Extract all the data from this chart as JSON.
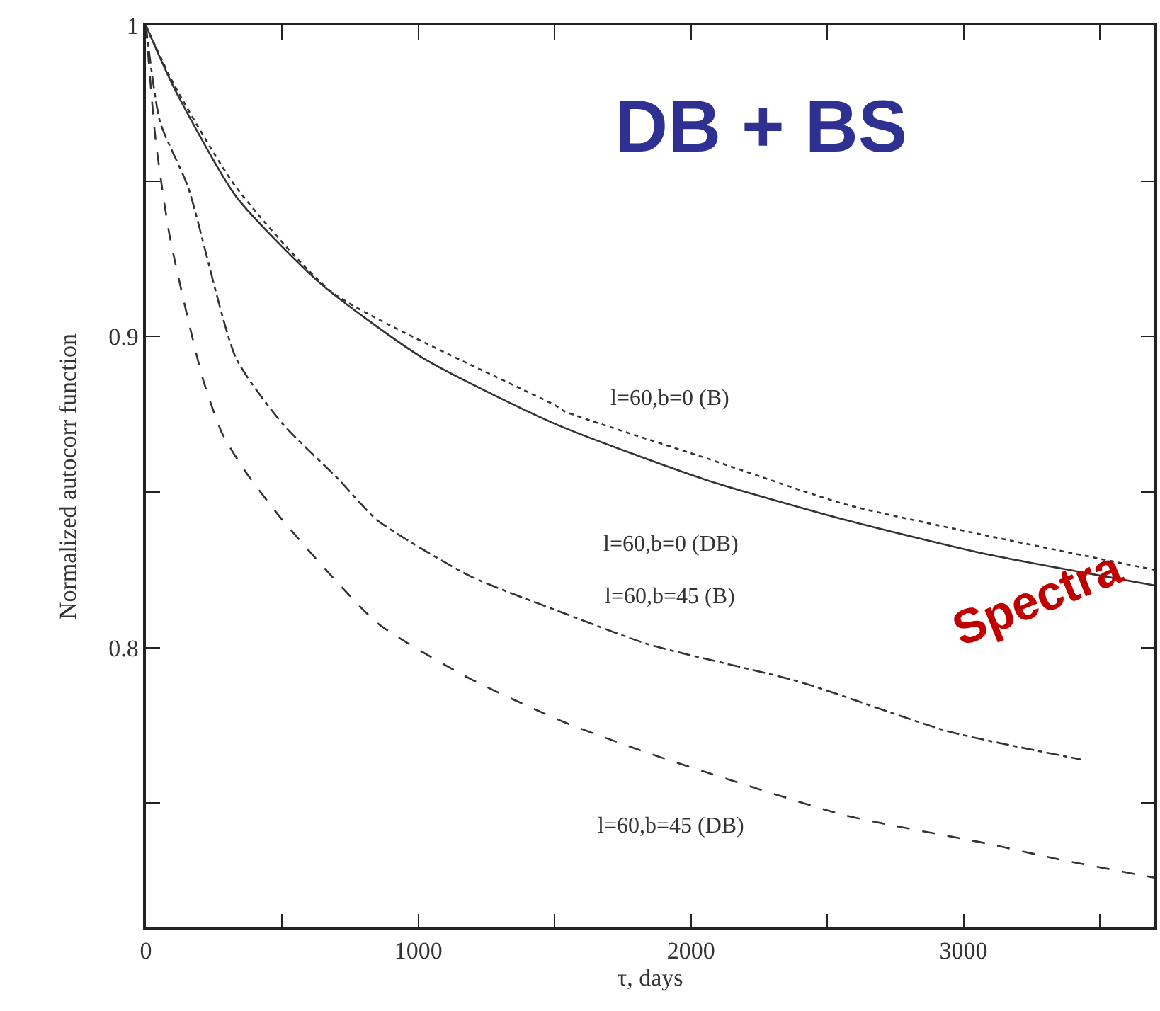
{
  "chart_data": {
    "type": "line",
    "xlabel": "τ, days",
    "ylabel": "Normalized autocorr function",
    "xlim": [
      0,
      3700
    ],
    "ylim": [
      0.71,
      1
    ],
    "xticks": [
      0,
      {
        "value": 500,
        "label": null
      },
      1000,
      {
        "value": 1500,
        "label": null
      },
      2000,
      {
        "value": 2500,
        "label": null
      },
      3000,
      {
        "value": 3500,
        "label": null
      }
    ],
    "yticks": [
      {
        "value": 0.75,
        "label": null
      },
      0.8,
      {
        "value": 0.85,
        "label": null
      },
      0.9,
      {
        "value": 0.95,
        "label": null
      },
      1
    ],
    "grid": false,
    "legend": false,
    "marker": "none",
    "series": [
      {
        "name": "l=60,b=0 (B)",
        "color": "#333333",
        "line_style": "dotted",
        "x": [
          0,
          103,
          331,
          687,
          1499,
          1535,
          2052,
          2568,
          3085,
          3700
        ],
        "values": [
          1,
          0.981,
          0.948,
          0.914,
          0.878,
          0.876,
          0.861,
          0.846,
          0.836,
          0.825
        ]
      },
      {
        "name": "l=60,b=0 (DB)",
        "color": "#333333",
        "line_style": "solid",
        "x": [
          0,
          103,
          331,
          641,
          1018,
          1499,
          2052,
          2568,
          3085,
          3700
        ],
        "values": [
          1,
          0.98,
          0.945,
          0.917,
          0.893,
          0.872,
          0.854,
          0.841,
          0.83,
          0.82
        ]
      },
      {
        "name": "l=60,b=45 (B)",
        "color": "#333333",
        "line_style": "dashdot",
        "x": [
          0,
          52,
          155,
          331,
          501,
          708,
          848,
          1189,
          1535,
          1845,
          2398,
          2946,
          3432
        ],
        "values": [
          1,
          0.969,
          0.948,
          0.893,
          0.872,
          0.854,
          0.841,
          0.823,
          0.811,
          0.801,
          0.789,
          0.773,
          0.764
        ]
      },
      {
        "name": "l=60,b=45 (DB)",
        "color": "#333333",
        "line_style": "dashed",
        "x": [
          0,
          36,
          88,
          207,
          279,
          362,
          501,
          848,
          1189,
          1535,
          1845,
          2052,
          2568,
          3085,
          3344,
          3700
        ],
        "values": [
          1,
          0.963,
          0.932,
          0.887,
          0.869,
          0.857,
          0.841,
          0.808,
          0.79,
          0.776,
          0.766,
          0.76,
          0.746,
          0.737,
          0.732,
          0.726
        ]
      }
    ],
    "annotations": [
      "DB + BS",
      "Spectra"
    ]
  }
}
